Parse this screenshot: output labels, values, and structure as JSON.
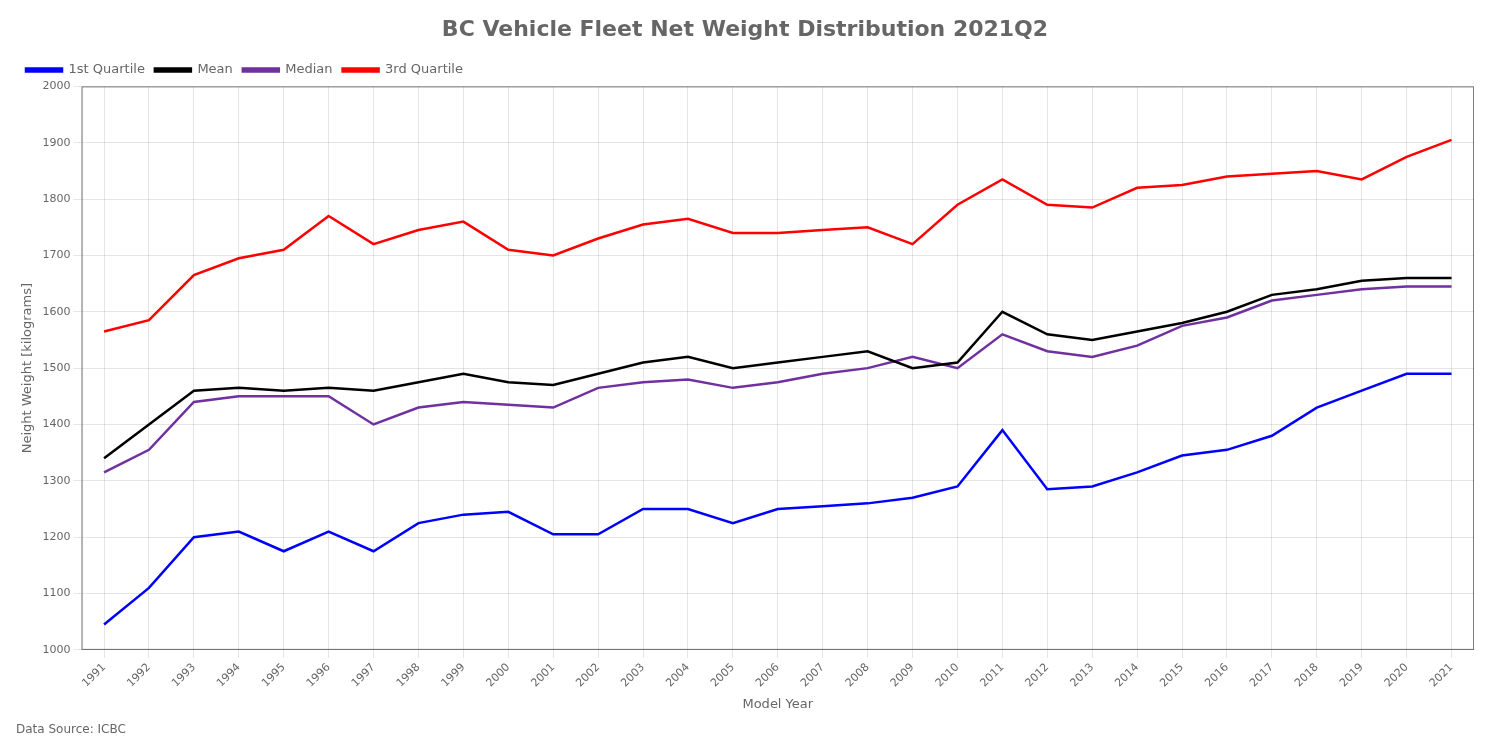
{
  "chart_data": {
    "type": "line",
    "title": "BC Vehicle Fleet Net Weight Distribution 2021Q2",
    "xlabel": "Model Year",
    "ylabel": "Neight Weight [kilograms]",
    "x": [
      1991,
      1992,
      1993,
      1994,
      1995,
      1996,
      1997,
      1998,
      1999,
      2000,
      2001,
      2002,
      2003,
      2004,
      2005,
      2006,
      2007,
      2008,
      2009,
      2010,
      2011,
      2012,
      2013,
      2014,
      2015,
      2016,
      2017,
      2018,
      2019,
      2020,
      2021
    ],
    "series": [
      {
        "name": "1st Quartile",
        "color": "#0000ff",
        "values": [
          1045,
          1110,
          1200,
          1210,
          1175,
          1210,
          1175,
          1225,
          1240,
          1245,
          1205,
          1205,
          1250,
          1250,
          1225,
          1250,
          1255,
          1260,
          1270,
          1290,
          1390,
          1285,
          1290,
          1315,
          1345,
          1355,
          1380,
          1430,
          1460,
          1490,
          1490
        ]
      },
      {
        "name": "Mean",
        "color": "#000000",
        "values": [
          1340,
          1400,
          1460,
          1465,
          1460,
          1465,
          1460,
          1475,
          1490,
          1475,
          1470,
          1490,
          1510,
          1520,
          1500,
          1510,
          1520,
          1530,
          1500,
          1510,
          1600,
          1560,
          1550,
          1565,
          1580,
          1600,
          1630,
          1640,
          1655,
          1660,
          1660
        ]
      },
      {
        "name": "Median",
        "color": "#7030a0",
        "values": [
          1315,
          1355,
          1440,
          1450,
          1450,
          1450,
          1400,
          1430,
          1440,
          1435,
          1430,
          1465,
          1475,
          1480,
          1465,
          1475,
          1490,
          1500,
          1520,
          1500,
          1560,
          1530,
          1520,
          1540,
          1575,
          1590,
          1620,
          1630,
          1640,
          1645,
          1645
        ]
      },
      {
        "name": "3rd Quartile",
        "color": "#ff0000",
        "values": [
          1565,
          1585,
          1665,
          1695,
          1710,
          1770,
          1720,
          1745,
          1760,
          1710,
          1700,
          1730,
          1755,
          1765,
          1740,
          1740,
          1745,
          1750,
          1720,
          1790,
          1835,
          1790,
          1785,
          1820,
          1825,
          1840,
          1845,
          1850,
          1835,
          1875,
          1905
        ]
      }
    ],
    "xlim": [
      1990.5,
      2021.5
    ],
    "xticks": [
      1991,
      1992,
      1993,
      1994,
      1995,
      1996,
      1997,
      1998,
      1999,
      2000,
      2001,
      2002,
      2003,
      2004,
      2005,
      2006,
      2007,
      2008,
      2009,
      2010,
      2011,
      2012,
      2013,
      2014,
      2015,
      2016,
      2017,
      2018,
      2019,
      2020,
      2021
    ],
    "ylim": [
      1000,
      2000
    ],
    "yticks": [
      1000,
      1100,
      1200,
      1300,
      1400,
      1500,
      1600,
      1700,
      1800,
      1900,
      2000
    ],
    "grid": true,
    "legend": "upper left",
    "annotations": [
      "Data Source: ICBC"
    ]
  }
}
